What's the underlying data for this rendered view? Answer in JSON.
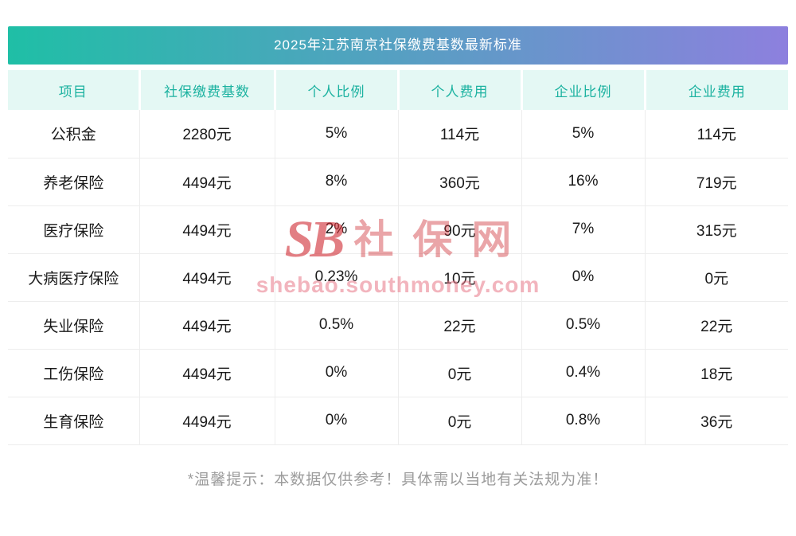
{
  "page": {
    "title": "2025年江苏南京社保缴费基数最新标准",
    "footer_note": "*温馨提示：本数据仅供参考！具体需以当地有关法规为准！"
  },
  "watermark": {
    "logo_text": "SB",
    "site_name": "社保网",
    "site_url": "shebao.southmoney.com"
  },
  "colors": {
    "title_gradient_start": "#1fbfa6",
    "title_gradient_end": "#8d80de",
    "header_bg": "#e4f8f4",
    "header_text": "#1cb2a0",
    "watermark_red": "#ce2830"
  },
  "chart_data": {
    "type": "table",
    "title": "2025年江苏南京社保缴费基数最新标准",
    "columns": [
      "项目",
      "社保缴费基数",
      "个人比例",
      "个人费用",
      "企业比例",
      "企业费用"
    ],
    "rows": [
      [
        "公积金",
        "2280元",
        "5%",
        "114元",
        "5%",
        "114元"
      ],
      [
        "养老保险",
        "4494元",
        "8%",
        "360元",
        "16%",
        "719元"
      ],
      [
        "医疗保险",
        "4494元",
        "2%",
        "90元",
        "7%",
        "315元"
      ],
      [
        "大病医疗保险",
        "4494元",
        "0.23%",
        "10元",
        "0%",
        "0元"
      ],
      [
        "失业保险",
        "4494元",
        "0.5%",
        "22元",
        "0.5%",
        "22元"
      ],
      [
        "工伤保险",
        "4494元",
        "0%",
        "0元",
        "0.4%",
        "18元"
      ],
      [
        "生育保险",
        "4494元",
        "0%",
        "0元",
        "0.8%",
        "36元"
      ]
    ]
  }
}
